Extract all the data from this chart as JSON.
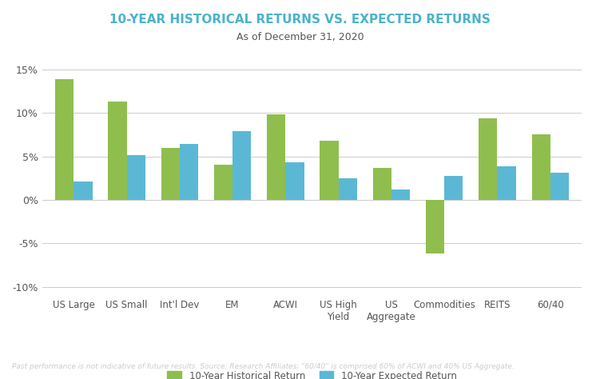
{
  "title": "10-YEAR HISTORICAL RETURNS VS. EXPECTED RETURNS",
  "subtitle": "As of December 31, 2020",
  "categories": [
    "US Large",
    "US Small",
    "Int'l Dev",
    "EM",
    "ACWI",
    "US High\nYield",
    "US\nAggregate",
    "Commodities",
    "REITS",
    "60/40"
  ],
  "historical_returns": [
    13.9,
    11.3,
    6.0,
    4.0,
    9.8,
    6.8,
    3.7,
    -6.2,
    9.4,
    7.5
  ],
  "expected_returns": [
    2.1,
    5.1,
    6.4,
    7.9,
    4.3,
    2.5,
    1.2,
    2.8,
    3.9,
    3.1
  ],
  "historical_color": "#8fbe4e",
  "expected_color": "#5bb8d4",
  "title_color": "#4ab3c8",
  "subtitle_color": "#555555",
  "background_color": "#ffffff",
  "footer_text": "Past performance is not indicative of future results. Source: Research Affiliates; \"60/40\" is comprised 60% of ACWI and 40% US Aggregate.",
  "footer_bg_color": "#4a7a6a",
  "footer_text_color": "#cccccc",
  "legend_label_historical": "10-Year Historical Return",
  "legend_label_expected": "10-Year Expected Return",
  "ylim_min": -11,
  "ylim_max": 16,
  "yticks": [
    -10,
    -5,
    0,
    5,
    10,
    15
  ]
}
